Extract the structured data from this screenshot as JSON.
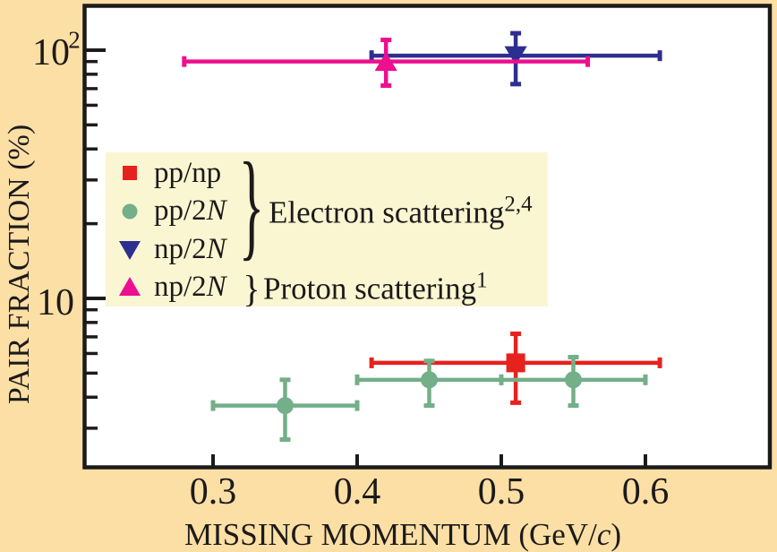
{
  "figure": {
    "background_color": "#fcdfa5",
    "plot_background": "#ffffff",
    "axis_color": "#1c1a1a"
  },
  "chart_data": {
    "type": "scatter",
    "xlabel": {
      "prefix": "MISSING MOMENTUM (GeV/",
      "italic": "c",
      "suffix": ")"
    },
    "ylabel": "PAIR FRACTION (%)",
    "xscale": "linear",
    "yscale": "log",
    "xlim": [
      0.21,
      0.688
    ],
    "ylim": [
      2.06,
      154
    ],
    "xticks": [
      0.3,
      0.4,
      0.5,
      0.6
    ],
    "yticks_major": [
      100,
      10
    ],
    "yticks_minor": [
      90,
      80,
      70,
      60,
      50,
      40,
      30,
      20,
      9,
      8,
      7,
      6,
      5,
      4,
      3
    ],
    "series": [
      {
        "name": "pp/np",
        "group": "Electron scattering",
        "marker": "square",
        "color": "#e7211d",
        "points": [
          {
            "x": 0.51,
            "y": 5.5,
            "x_lo": 0.41,
            "x_hi": 0.61,
            "y_lo": 3.8,
            "y_hi": 7.2
          }
        ]
      },
      {
        "name": "pp/2N",
        "group": "Electron scattering",
        "marker": "circle",
        "color": "#73af88",
        "points": [
          {
            "x": 0.35,
            "y": 3.7,
            "x_lo": 0.3,
            "x_hi": 0.4,
            "y_lo": 2.7,
            "y_hi": 4.7
          },
          {
            "x": 0.45,
            "y": 4.7,
            "x_lo": 0.4,
            "x_hi": 0.5,
            "y_lo": 3.7,
            "y_hi": 5.6
          },
          {
            "x": 0.55,
            "y": 4.7,
            "x_lo": 0.5,
            "x_hi": 0.6,
            "y_lo": 3.7,
            "y_hi": 5.8
          }
        ]
      },
      {
        "name": "np/2N",
        "group": "Electron scattering",
        "marker": "triangle-down",
        "color": "#2d2f90",
        "points": [
          {
            "x": 0.51,
            "y": 95,
            "x_lo": 0.41,
            "x_hi": 0.61,
            "y_lo": 73,
            "y_hi": 117
          }
        ]
      },
      {
        "name": "np/2N",
        "group": "Proton scattering",
        "marker": "triangle-up",
        "color": "#ec0f8f",
        "points": [
          {
            "x": 0.42,
            "y": 90,
            "x_lo": 0.28,
            "x_hi": 0.56,
            "y_lo": 72,
            "y_hi": 110
          }
        ]
      }
    ]
  },
  "legend": {
    "background_color": "#faf6d2",
    "items": [
      {
        "marker": "square",
        "color": "#e7211d",
        "label": "pp/np"
      },
      {
        "marker": "circle",
        "color": "#73af88",
        "label": "pp/2N"
      },
      {
        "marker": "triangle-down",
        "color": "#2d2f90",
        "label": "np/2N"
      },
      {
        "marker": "triangle-up",
        "color": "#ec0f8f",
        "label": "np/2N"
      }
    ],
    "groups": [
      {
        "label": "Electron scattering",
        "superscript": "2,4",
        "rows": [
          0,
          1,
          2
        ],
        "brace": "}"
      },
      {
        "label": "Proton scattering",
        "superscript": "1",
        "rows": [
          3
        ],
        "brace": "}"
      }
    ]
  }
}
